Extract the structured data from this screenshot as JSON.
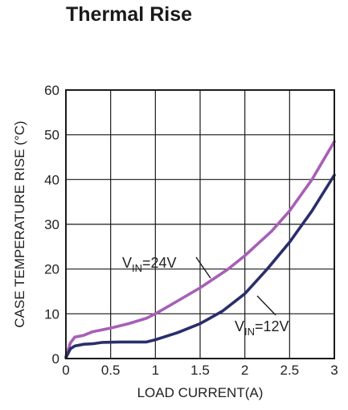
{
  "page_title": "Thermal Rise",
  "chart_data": {
    "type": "line",
    "xlabel": "LOAD CURRENT(A)",
    "ylabel": "CASE TEMPERATURE RISE (°C)",
    "xlim": [
      0,
      3
    ],
    "ylim": [
      0,
      60
    ],
    "x_ticks": [
      "0",
      "0.5",
      "1",
      "1.5",
      "2",
      "2.5",
      "3"
    ],
    "y_ticks": [
      "0",
      "10",
      "20",
      "30",
      "40",
      "50",
      "60"
    ],
    "grid": true,
    "series": [
      {
        "label_main": "V",
        "label_sub": "IN",
        "label_suffix": "=24V",
        "color": "#a75fb6",
        "points": [
          [
            0,
            0.5
          ],
          [
            0.05,
            3.5
          ],
          [
            0.1,
            4.8
          ],
          [
            0.2,
            5.2
          ],
          [
            0.3,
            6.0
          ],
          [
            0.5,
            6.8
          ],
          [
            0.7,
            7.8
          ],
          [
            0.9,
            9.0
          ],
          [
            1.0,
            10.0
          ],
          [
            1.2,
            12.3
          ],
          [
            1.5,
            15.8
          ],
          [
            1.8,
            19.8
          ],
          [
            2.0,
            23.0
          ],
          [
            2.3,
            28.5
          ],
          [
            2.5,
            33.0
          ],
          [
            2.75,
            40.0
          ],
          [
            3.0,
            48.5
          ]
        ]
      },
      {
        "label_main": "V",
        "label_sub": "IN",
        "label_suffix": "=12V",
        "color": "#2b2d6b",
        "points": [
          [
            0,
            0.2
          ],
          [
            0.05,
            2.2
          ],
          [
            0.1,
            2.8
          ],
          [
            0.2,
            3.2
          ],
          [
            0.3,
            3.3
          ],
          [
            0.4,
            3.6
          ],
          [
            0.6,
            3.7
          ],
          [
            0.9,
            3.7
          ],
          [
            1.0,
            4.2
          ],
          [
            1.25,
            5.8
          ],
          [
            1.5,
            7.8
          ],
          [
            1.75,
            10.6
          ],
          [
            2.0,
            14.5
          ],
          [
            2.25,
            20.0
          ],
          [
            2.5,
            26.0
          ],
          [
            2.75,
            33.0
          ],
          [
            3.0,
            41.0
          ]
        ]
      }
    ]
  }
}
